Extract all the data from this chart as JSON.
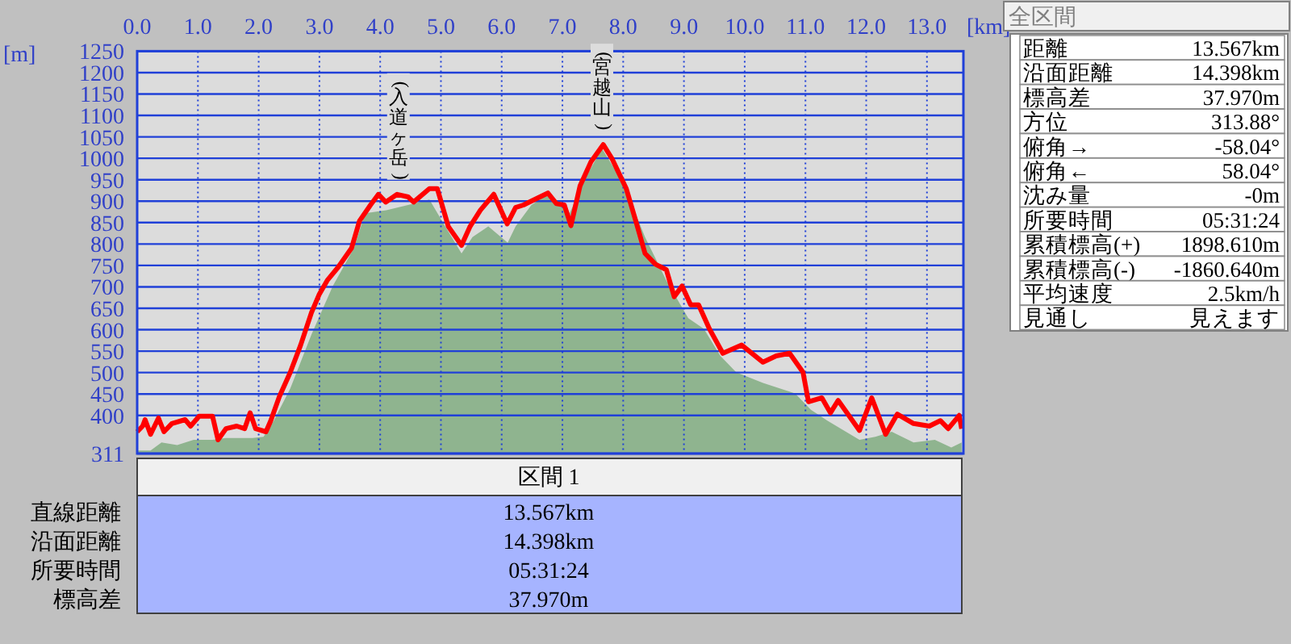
{
  "chart_data": {
    "type": "line",
    "xlabel": "[km]",
    "ylabel": "[m]",
    "xlim": [
      0,
      13.6
    ],
    "ylim": [
      311,
      1250
    ],
    "xticks": [
      {
        "value": 0,
        "label": "0.0"
      },
      {
        "value": 1,
        "label": "1.0"
      },
      {
        "value": 2,
        "label": "2.0"
      },
      {
        "value": 3,
        "label": "3.0"
      },
      {
        "value": 4,
        "label": "4.0"
      },
      {
        "value": 5,
        "label": "5.0"
      },
      {
        "value": 6,
        "label": "6.0"
      },
      {
        "value": 7,
        "label": "7.0"
      },
      {
        "value": 8,
        "label": "8.0"
      },
      {
        "value": 9,
        "label": "9.0"
      },
      {
        "value": 10,
        "label": "10.0"
      },
      {
        "value": 11,
        "label": "11.0"
      },
      {
        "value": 12,
        "label": "12.0"
      },
      {
        "value": 13,
        "label": "13.0"
      }
    ],
    "yticks": [
      311,
      400,
      450,
      500,
      550,
      600,
      650,
      700,
      750,
      800,
      850,
      900,
      950,
      1000,
      1050,
      1100,
      1150,
      1200,
      1250
    ],
    "grid": true,
    "marker": "none",
    "series": [
      {
        "type": "area",
        "color": "#8fb48f",
        "x": [
          0,
          0.22,
          0.4,
          0.66,
          0.93,
          1.24,
          1.46,
          1.9,
          2.08,
          2.25,
          2.52,
          2.87,
          3.22,
          3.57,
          3.75,
          4.1,
          4.46,
          4.81,
          5.07,
          5.34,
          5.52,
          5.78,
          6.1,
          6.23,
          6.49,
          6.76,
          7.03,
          7.12,
          7.38,
          7.65,
          8.0,
          8.36,
          8.71,
          9.07,
          9.33,
          9.6,
          9.86,
          10.3,
          10.83,
          11.09,
          11.36,
          11.89,
          12.15,
          12.42,
          12.78,
          13.13,
          13.4,
          13.57
        ],
        "values": [
          318,
          318,
          337,
          331,
          343,
          343,
          347,
          347,
          350,
          388,
          463,
          589,
          702,
          791,
          872,
          879,
          891,
          904,
          841,
          778,
          816,
          841,
          803,
          841,
          891,
          916,
          885,
          872,
          954,
          1023,
          942,
          816,
          715,
          627,
          602,
          539,
          501,
          476,
          451,
          413,
          388,
          343,
          350,
          362,
          337,
          343,
          325,
          337
        ]
      },
      {
        "type": "line",
        "color": "#ff0000",
        "x": [
          0,
          0.09,
          0.13,
          0.22,
          0.35,
          0.44,
          0.57,
          0.79,
          0.88,
          1.02,
          1.24,
          1.33,
          1.46,
          1.64,
          1.77,
          1.86,
          1.95,
          2.12,
          2.2,
          2.34,
          2.52,
          2.69,
          2.87,
          3.0,
          3.13,
          3.31,
          3.53,
          3.66,
          3.84,
          3.97,
          4.09,
          4.28,
          4.46,
          4.55,
          4.81,
          4.94,
          5.12,
          5.34,
          5.48,
          5.65,
          5.87,
          6.09,
          6.23,
          6.36,
          6.5,
          6.76,
          6.9,
          7.03,
          7.14,
          7.29,
          7.47,
          7.67,
          7.82,
          8.05,
          8.22,
          8.36,
          8.53,
          8.71,
          8.84,
          8.97,
          9.11,
          9.24,
          9.42,
          9.64,
          9.95,
          10.3,
          10.52,
          10.74,
          10.96,
          11.05,
          11.27,
          11.41,
          11.54,
          11.89,
          12.09,
          12.32,
          12.51,
          12.78,
          13.04,
          13.22,
          13.35,
          13.53,
          13.57
        ],
        "values": [
          362,
          375,
          390,
          356,
          394,
          362,
          381,
          390,
          375,
          398,
          398,
          343,
          369,
          375,
          369,
          406,
          369,
          362,
          388,
          444,
          501,
          564,
          640,
          683,
          715,
          746,
          791,
          854,
          891,
          916,
          898,
          916,
          910,
          898,
          929,
          929,
          841,
          797,
          841,
          879,
          916,
          847,
          885,
          891,
          901,
          919,
          894,
          891,
          843,
          935,
          992,
          1032,
          998,
          929,
          847,
          778,
          753,
          740,
          677,
          702,
          658,
          658,
          602,
          545,
          564,
          524,
          539,
          545,
          501,
          432,
          441,
          406,
          435,
          365,
          441,
          356,
          403,
          381,
          375,
          388,
          369,
          400,
          369
        ]
      }
    ],
    "annotations": [
      {
        "text": "(入道ヶ岳)",
        "x": 4.3,
        "y": 916
      },
      {
        "text": "(宮越山)",
        "x": 7.65,
        "y": 1032
      },
      "全区間",
      "距離",
      "13.567km",
      "沿面距離",
      "14.398km",
      "標高差",
      "37.970m",
      "方位",
      "313.88°",
      "俯角→",
      "-58.04°",
      "俯角←",
      "58.04°",
      "沈み量",
      "-0m",
      "所要時間",
      "05:31:24",
      "累積標高(+)",
      "1898.610m",
      "累積標高(-)",
      "-1860.640m",
      "平均速度",
      "2.5km/h",
      "見通し",
      "見えます",
      "区間 1",
      "直線距離",
      "13.567km",
      "沿面距離",
      "14.398km",
      "所要時間",
      "05:31:24",
      "標高差",
      "37.970m"
    ]
  }
}
